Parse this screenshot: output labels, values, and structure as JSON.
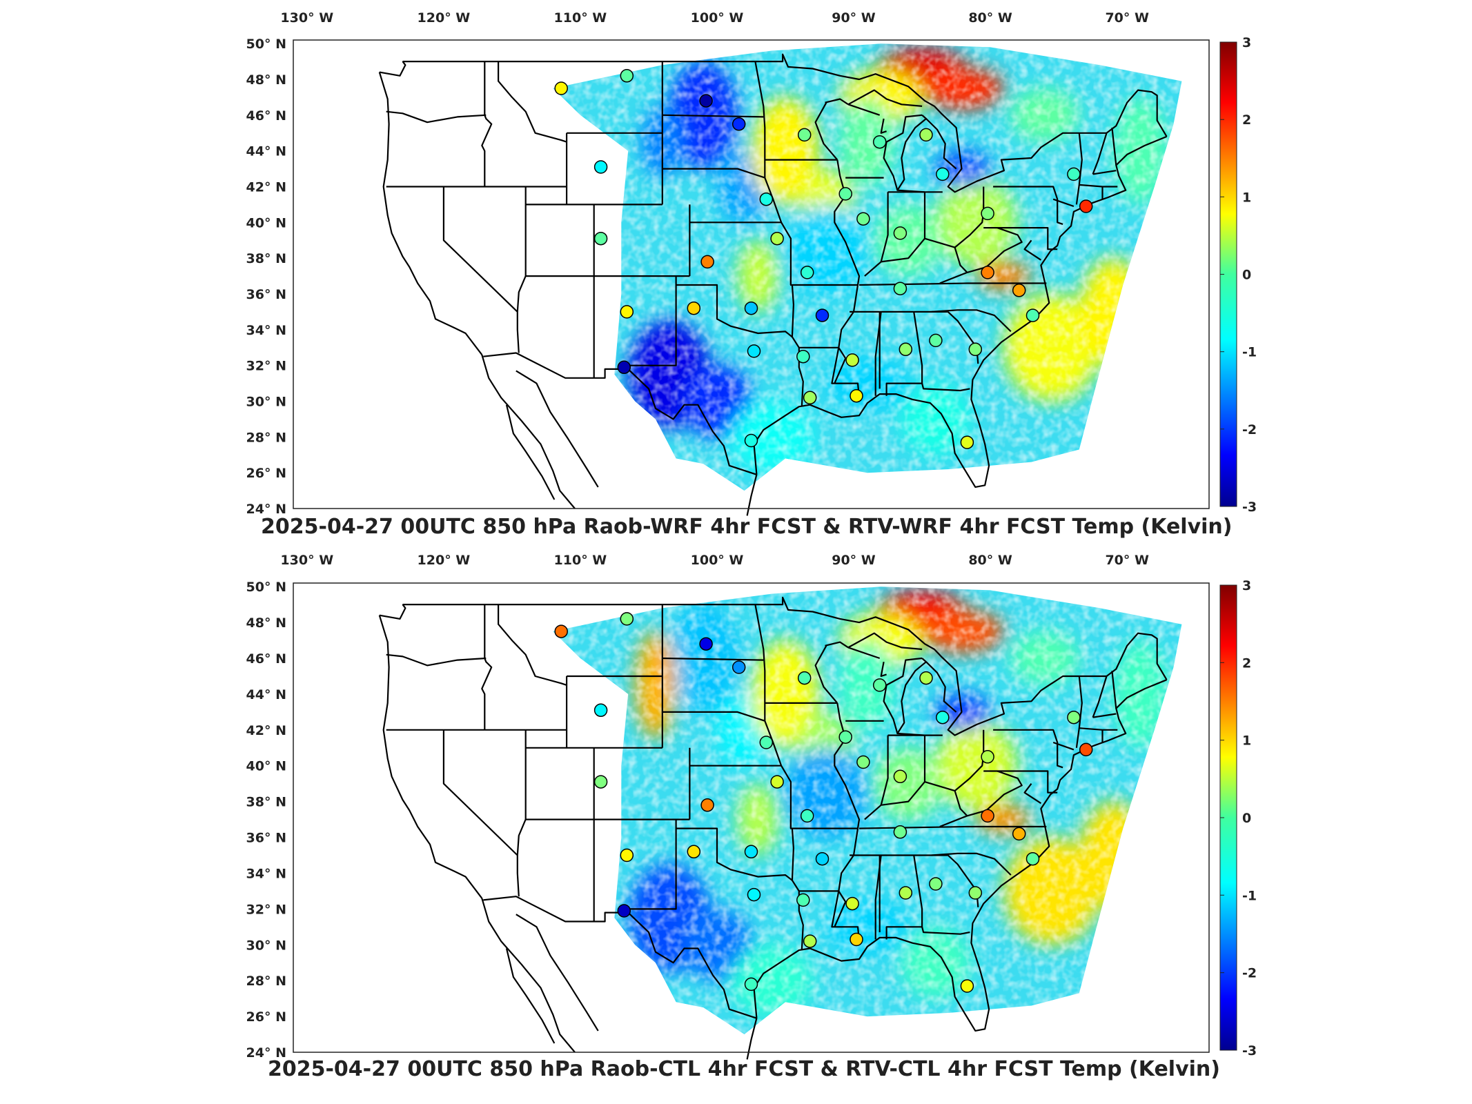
{
  "panels": [
    {
      "title": "2025-04-27 00UTC 850 hPa Raob-WRF 4hr FCST & RTV-WRF 4hr FCST Temp (Kelvin)",
      "stations": [
        {
          "lon": -111.4,
          "lat": 47.5,
          "v": 0.8
        },
        {
          "lon": -106.6,
          "lat": 48.2,
          "v": -0.2
        },
        {
          "lon": -100.8,
          "lat": 46.8,
          "v": -2.8
        },
        {
          "lon": -98.4,
          "lat": 45.5,
          "v": -2.0
        },
        {
          "lon": -108.5,
          "lat": 43.1,
          "v": -0.8
        },
        {
          "lon": -93.6,
          "lat": 44.9,
          "v": -0.1
        },
        {
          "lon": -88.1,
          "lat": 44.5,
          "v": -0.3
        },
        {
          "lon": -84.7,
          "lat": 44.9,
          "v": 0.2
        },
        {
          "lon": -83.5,
          "lat": 42.7,
          "v": -0.6
        },
        {
          "lon": -73.9,
          "lat": 42.7,
          "v": -0.4
        },
        {
          "lon": -96.4,
          "lat": 41.3,
          "v": -0.6
        },
        {
          "lon": -90.6,
          "lat": 41.6,
          "v": -0.2
        },
        {
          "lon": -108.5,
          "lat": 39.1,
          "v": -0.2
        },
        {
          "lon": -95.6,
          "lat": 39.1,
          "v": 0.3
        },
        {
          "lon": -100.7,
          "lat": 37.8,
          "v": 1.5
        },
        {
          "lon": -89.3,
          "lat": 40.2,
          "v": -0.1
        },
        {
          "lon": -86.6,
          "lat": 39.4,
          "v": 0.0
        },
        {
          "lon": -80.2,
          "lat": 40.5,
          "v": 0.0
        },
        {
          "lon": -93.4,
          "lat": 37.2,
          "v": -0.5
        },
        {
          "lon": -86.6,
          "lat": 36.3,
          "v": -0.2
        },
        {
          "lon": -80.2,
          "lat": 37.2,
          "v": 1.5
        },
        {
          "lon": -77.9,
          "lat": 36.2,
          "v": 1.3
        },
        {
          "lon": -101.7,
          "lat": 35.2,
          "v": 1.0
        },
        {
          "lon": -97.5,
          "lat": 35.2,
          "v": -1.1
        },
        {
          "lon": -106.6,
          "lat": 35.0,
          "v": 0.8
        },
        {
          "lon": -92.3,
          "lat": 34.8,
          "v": -2.0
        },
        {
          "lon": -76.9,
          "lat": 34.8,
          "v": -0.3
        },
        {
          "lon": -97.3,
          "lat": 32.8,
          "v": -0.9
        },
        {
          "lon": -90.1,
          "lat": 32.3,
          "v": 0.4
        },
        {
          "lon": -86.2,
          "lat": 32.9,
          "v": 0.1
        },
        {
          "lon": -84.0,
          "lat": 33.4,
          "v": -0.2
        },
        {
          "lon": -81.1,
          "lat": 32.9,
          "v": 0.0
        },
        {
          "lon": -93.7,
          "lat": 32.5,
          "v": -0.4
        },
        {
          "lon": -106.8,
          "lat": 31.9,
          "v": -2.7
        },
        {
          "lon": -93.2,
          "lat": 30.2,
          "v": 0.2
        },
        {
          "lon": -89.8,
          "lat": 30.3,
          "v": 0.8
        },
        {
          "lon": -97.5,
          "lat": 27.8,
          "v": -0.6
        },
        {
          "lon": -81.7,
          "lat": 27.7,
          "v": 0.6
        },
        {
          "lon": -73.0,
          "lat": 40.9,
          "v": 2.0
        }
      ]
    },
    {
      "title": "2025-04-27 00UTC 850 hPa Raob-CTL 4hr FCST & RTV-CTL 4hr FCST Temp (Kelvin)",
      "stations": [
        {
          "lon": -111.4,
          "lat": 47.5,
          "v": 1.6
        },
        {
          "lon": -106.6,
          "lat": 48.2,
          "v": 0.0
        },
        {
          "lon": -100.8,
          "lat": 46.8,
          "v": -2.4
        },
        {
          "lon": -98.4,
          "lat": 45.5,
          "v": -1.4
        },
        {
          "lon": -108.5,
          "lat": 43.1,
          "v": -0.8
        },
        {
          "lon": -93.6,
          "lat": 44.9,
          "v": -0.3
        },
        {
          "lon": -88.1,
          "lat": 44.5,
          "v": -0.2
        },
        {
          "lon": -84.7,
          "lat": 44.9,
          "v": 0.3
        },
        {
          "lon": -83.5,
          "lat": 42.7,
          "v": -0.6
        },
        {
          "lon": -73.9,
          "lat": 42.7,
          "v": 0.0
        },
        {
          "lon": -96.4,
          "lat": 41.3,
          "v": -0.3
        },
        {
          "lon": -90.6,
          "lat": 41.6,
          "v": -0.2
        },
        {
          "lon": -108.5,
          "lat": 39.1,
          "v": 0.0
        },
        {
          "lon": -95.6,
          "lat": 39.1,
          "v": 0.5
        },
        {
          "lon": -100.7,
          "lat": 37.8,
          "v": 1.5
        },
        {
          "lon": -89.3,
          "lat": 40.2,
          "v": 0.0
        },
        {
          "lon": -86.6,
          "lat": 39.4,
          "v": 0.3
        },
        {
          "lon": -80.2,
          "lat": 40.5,
          "v": 0.3
        },
        {
          "lon": -93.4,
          "lat": 37.2,
          "v": -0.4
        },
        {
          "lon": -86.6,
          "lat": 36.3,
          "v": -0.1
        },
        {
          "lon": -80.2,
          "lat": 37.2,
          "v": 1.6
        },
        {
          "lon": -77.9,
          "lat": 36.2,
          "v": 1.2
        },
        {
          "lon": -101.7,
          "lat": 35.2,
          "v": 0.9
        },
        {
          "lon": -97.5,
          "lat": 35.2,
          "v": -0.9
        },
        {
          "lon": -106.6,
          "lat": 35.0,
          "v": 0.8
        },
        {
          "lon": -92.3,
          "lat": 34.8,
          "v": -1.0
        },
        {
          "lon": -76.9,
          "lat": 34.8,
          "v": -0.2
        },
        {
          "lon": -97.3,
          "lat": 32.8,
          "v": -0.8
        },
        {
          "lon": -90.1,
          "lat": 32.3,
          "v": 0.5
        },
        {
          "lon": -86.2,
          "lat": 32.9,
          "v": 0.3
        },
        {
          "lon": -84.0,
          "lat": 33.4,
          "v": 0.0
        },
        {
          "lon": -81.1,
          "lat": 32.9,
          "v": 0.1
        },
        {
          "lon": -93.7,
          "lat": 32.5,
          "v": -0.3
        },
        {
          "lon": -106.8,
          "lat": 31.9,
          "v": -2.6
        },
        {
          "lon": -93.2,
          "lat": 30.2,
          "v": 0.3
        },
        {
          "lon": -89.8,
          "lat": 30.3,
          "v": 1.0
        },
        {
          "lon": -97.5,
          "lat": 27.8,
          "v": -0.4
        },
        {
          "lon": -81.7,
          "lat": 27.7,
          "v": 0.7
        },
        {
          "lon": -73.0,
          "lat": 40.9,
          "v": 1.8
        }
      ]
    }
  ],
  "lon_ticks": [
    "130",
    "120",
    "110",
    "100",
    "90",
    "80",
    "70"
  ],
  "lon_tick_values": [
    -130,
    -120,
    -110,
    -100,
    -90,
    -80,
    -70
  ],
  "lat_ticks": [
    "50",
    "48",
    "46",
    "44",
    "42",
    "40",
    "38",
    "36",
    "34",
    "32",
    "30",
    "28",
    "26",
    "24"
  ],
  "lat_tick_values": [
    50,
    48,
    46,
    44,
    42,
    40,
    38,
    36,
    34,
    32,
    30,
    28,
    26,
    24
  ],
  "lon_suffix": "W",
  "lat_suffix": "N",
  "colorbar": {
    "ticks": [
      "3",
      "2",
      "1",
      "0",
      "-1",
      "-2",
      "-3"
    ],
    "tick_values": [
      3,
      2,
      1,
      0,
      -1,
      -2,
      -3
    ],
    "range": [
      -3,
      3
    ],
    "colormap": "jet"
  },
  "chart_data": [
    {
      "type": "heatmap",
      "title": "2025-04-27 00UTC 850 hPa Raob-WRF 4hr FCST & RTV-WRF 4hr FCST Temp (Kelvin)",
      "xlabel": "",
      "ylabel": "",
      "xlim": [
        -131,
        -64
      ],
      "ylim": [
        24,
        50.2
      ],
      "clim": [
        -3,
        3
      ],
      "grid": false
    },
    {
      "type": "heatmap",
      "title": "2025-04-27 00UTC 850 hPa Raob-CTL 4hr FCST & RTV-CTL 4hr FCST Temp (Kelvin)",
      "xlabel": "",
      "ylabel": "",
      "xlim": [
        -131,
        -64
      ],
      "ylim": [
        24,
        50.2
      ],
      "clim": [
        -3,
        3
      ],
      "grid": false
    }
  ]
}
